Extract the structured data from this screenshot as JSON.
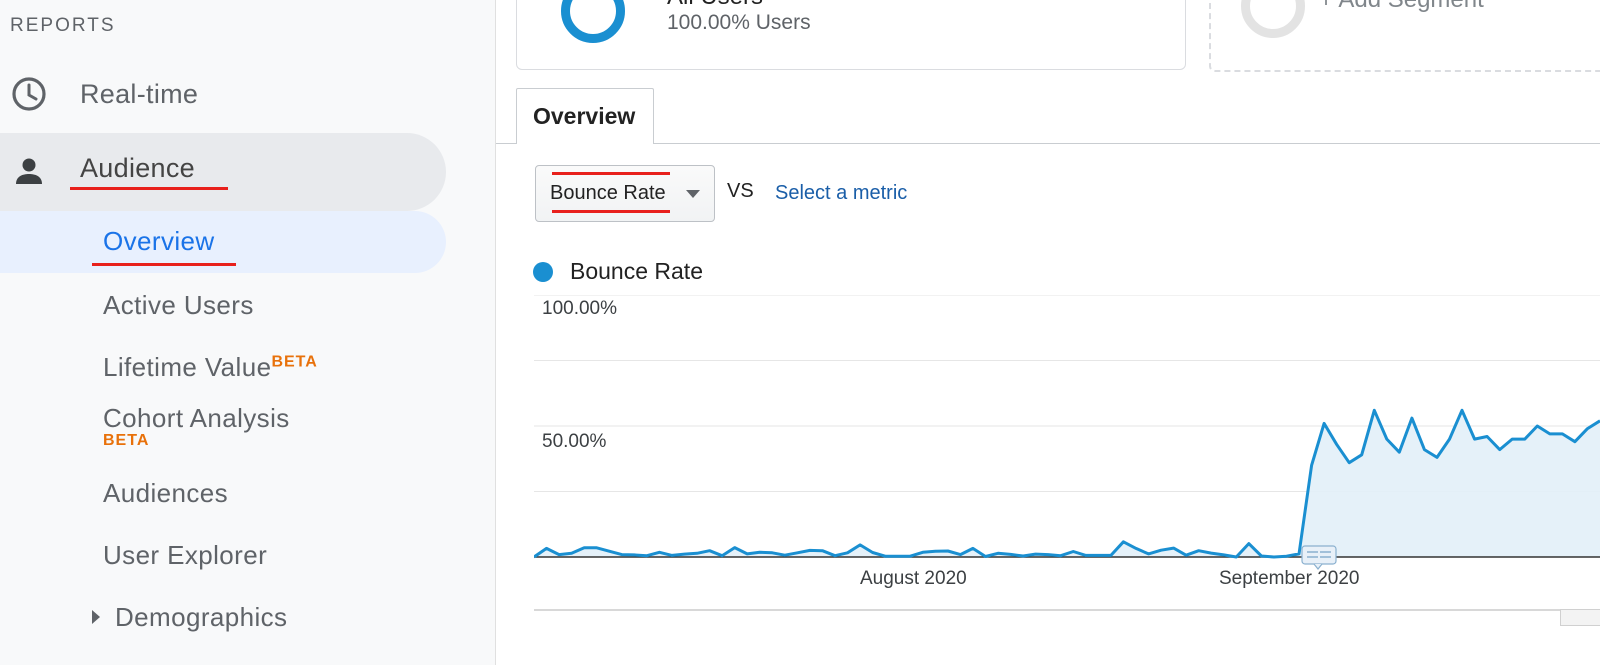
{
  "sidebar": {
    "section_label": "REPORTS",
    "items": [
      {
        "label": "Real-time",
        "icon": "clock-icon"
      },
      {
        "label": "Audience",
        "icon": "person-icon"
      }
    ],
    "sub_items": [
      {
        "label": "Overview",
        "selected": true
      },
      {
        "label": "Active Users"
      },
      {
        "label": "Lifetime Value",
        "badge": "BETA"
      },
      {
        "label": "Cohort Analysis",
        "badge": "BETA"
      },
      {
        "label": "Audiences"
      },
      {
        "label": "User Explorer"
      },
      {
        "label": "Demographics",
        "icon": "triangle-right-icon"
      }
    ]
  },
  "segments": {
    "all_users": {
      "title": "All Users",
      "subtitle": "100.00% Users",
      "color": "#1a8fd1"
    },
    "add_segment": {
      "label": "+ Add Segment"
    }
  },
  "tabs": [
    {
      "label": "Overview"
    }
  ],
  "metric_picker": {
    "selected": "Bounce Rate",
    "vs_label": "VS",
    "select_metric_label": "Select a metric"
  },
  "colors": {
    "accent": "#1a8fd1",
    "annotation_red": "#e8201c",
    "selected_nav": "#1a73e8",
    "beta": "#e8710a"
  },
  "chart_data": {
    "type": "area",
    "legend": [
      "Bounce Rate"
    ],
    "ylabel": "",
    "yticks": [
      "100.00%",
      "50.00%"
    ],
    "ylim": [
      0,
      100
    ],
    "xticks": [
      "August 2020",
      "September 2020"
    ],
    "grid": true,
    "series": [
      {
        "name": "Bounce Rate",
        "values": [
          0,
          3.3,
          0.9,
          1.4,
          3.5,
          3.5,
          2.2,
          0.9,
          0.8,
          0.5,
          1.8,
          0.6,
          1.1,
          1.4,
          2.4,
          0.5,
          3.6,
          1.2,
          1.8,
          1.6,
          0.7,
          1.6,
          2.5,
          2.4,
          0.5,
          1.6,
          4.6,
          1.7,
          0.3,
          0.3,
          0.3,
          1.8,
          2.2,
          2.3,
          0.9,
          3.3,
          0.2,
          1.4,
          1,
          0.4,
          1.1,
          0.9,
          0.5,
          2.1,
          0.6,
          0.6,
          0.6,
          5.8,
          3.3,
          1.2,
          2.6,
          3.4,
          0.7,
          2.4,
          1.5,
          0.8,
          0,
          5.1,
          0.4,
          0,
          0.3,
          1.2,
          35,
          51,
          43,
          36,
          39,
          56,
          45,
          40,
          53,
          41,
          38,
          45,
          56,
          45,
          46,
          41,
          45,
          45,
          50,
          47,
          47,
          44,
          49,
          52
        ]
      }
    ]
  }
}
